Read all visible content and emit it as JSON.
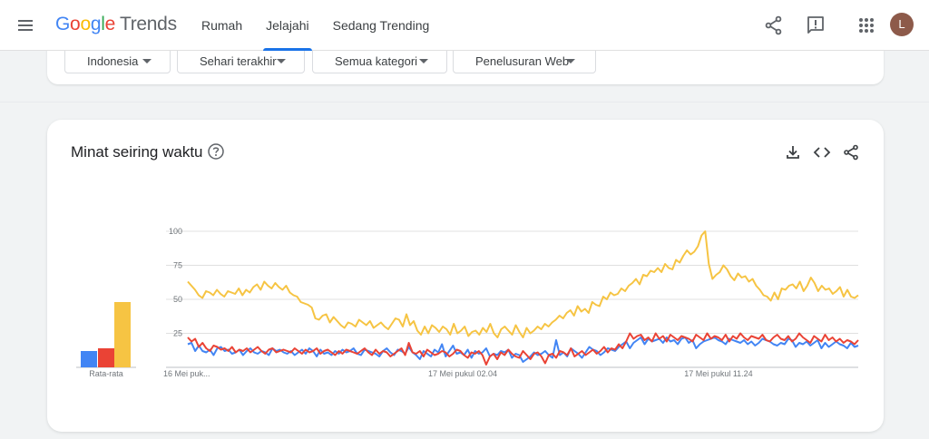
{
  "header": {
    "logo_letters": [
      "G",
      "o",
      "o",
      "g",
      "l",
      "e"
    ],
    "logo_suffix": "Trends",
    "nav": [
      {
        "label": "Rumah",
        "active": false
      },
      {
        "label": "Jelajahi",
        "active": true
      },
      {
        "label": "Sedang Trending",
        "active": false
      }
    ],
    "avatar_letter": "L",
    "icons": [
      "menu-icon",
      "share-icon",
      "feedback-icon",
      "apps-icon"
    ]
  },
  "filters": {
    "region": "Indonesia",
    "time": "Sehari terakhir",
    "category": "Semua kategori",
    "search_type": "Penelusuran Web"
  },
  "interest_card": {
    "title": "Minat seiring waktu",
    "icons": [
      "help-icon",
      "download-icon",
      "embed-icon",
      "share-icon"
    ]
  },
  "colors": {
    "blue": "#4285f4",
    "red": "#ea4335",
    "yellow": "#f6c443",
    "grid": "#e0e0e0",
    "axis_text": "#70757a"
  },
  "chart_data": {
    "type": "line",
    "ylim": [
      0,
      100
    ],
    "y_ticks": [
      "100",
      "75",
      "50",
      "25"
    ],
    "x_tick_labels": [
      "16 Mei puk...",
      "17 Mei pukul 02.04",
      "17 Mei pukul 11.24"
    ],
    "average_label": "Rata-rata",
    "averages": [
      12,
      14,
      48
    ],
    "series": [
      {
        "color": "#4285f4",
        "values": [
          17,
          18,
          12,
          16,
          12,
          11,
          13,
          9,
          14,
          15,
          12,
          13,
          10,
          11,
          13,
          9,
          12,
          14,
          11,
          10,
          12,
          11,
          9,
          14,
          12,
          13,
          11,
          10,
          12,
          9,
          11,
          13,
          10,
          14,
          12,
          8,
          13,
          10,
          11,
          9,
          12,
          10,
          13,
          11,
          12,
          14,
          10,
          9,
          13,
          12,
          11,
          10,
          8,
          12,
          14,
          11,
          9,
          13,
          12,
          10,
          15,
          11,
          9,
          6,
          12,
          10,
          8,
          13,
          11,
          17,
          8,
          12,
          16,
          10,
          11,
          9,
          13,
          7,
          12,
          10,
          11,
          14,
          8,
          10,
          9,
          12,
          11,
          13,
          7,
          10,
          9,
          4,
          6,
          8,
          11,
          9,
          10,
          12,
          9,
          7,
          20,
          9,
          11,
          8,
          14,
          12,
          10,
          7,
          11,
          15,
          13,
          12,
          9,
          11,
          14,
          13,
          12,
          15,
          17,
          19,
          14,
          18,
          20,
          22,
          17,
          21,
          19,
          20,
          21,
          18,
          22,
          19,
          20,
          17,
          21,
          22,
          18,
          20,
          14,
          17,
          19,
          20,
          21,
          22,
          20,
          19,
          17,
          21,
          20,
          19,
          18,
          20,
          17,
          19,
          16,
          18,
          21,
          20,
          19,
          17,
          16,
          18,
          17,
          21,
          20,
          15,
          18,
          17,
          19,
          16,
          18,
          20,
          14,
          18,
          15,
          17,
          19,
          17,
          16,
          14,
          18,
          15,
          16
        ]
      },
      {
        "color": "#ea4335",
        "values": [
          22,
          19,
          21,
          15,
          18,
          14,
          12,
          16,
          15,
          13,
          14,
          12,
          15,
          11,
          13,
          12,
          14,
          11,
          13,
          15,
          12,
          10,
          13,
          14,
          11,
          12,
          13,
          12,
          11,
          14,
          12,
          10,
          13,
          11,
          12,
          14,
          10,
          12,
          13,
          11,
          9,
          12,
          10,
          13,
          12,
          11,
          10,
          12,
          14,
          11,
          9,
          13,
          10,
          12,
          11,
          8,
          10,
          12,
          14,
          9,
          18,
          11,
          10,
          12,
          8,
          13,
          11,
          9,
          10,
          12,
          11,
          8,
          10,
          13,
          12,
          9,
          7,
          11,
          10,
          12,
          9,
          2,
          8,
          10,
          6,
          11,
          9,
          13,
          10,
          8,
          7,
          12,
          9,
          6,
          10,
          11,
          8,
          3,
          9,
          10,
          7,
          12,
          11,
          9,
          14,
          8,
          10,
          12,
          9,
          11,
          13,
          10,
          12,
          15,
          11,
          14,
          13,
          17,
          14,
          19,
          25,
          21,
          23,
          24,
          20,
          22,
          19,
          25,
          21,
          23,
          19,
          24,
          22,
          20,
          23,
          22,
          21,
          19,
          24,
          22,
          20,
          25,
          21,
          23,
          22,
          20,
          24,
          19,
          23,
          21,
          25,
          22,
          20,
          23,
          22,
          21,
          24,
          20,
          19,
          22,
          24,
          21,
          20,
          23,
          19,
          21,
          25,
          22,
          20,
          18,
          23,
          21,
          19,
          24,
          20,
          22,
          19,
          21,
          18,
          20,
          19,
          17,
          20
        ]
      },
      {
        "color": "#f6c443",
        "values": [
          63,
          60,
          57,
          53,
          51,
          56,
          55,
          53,
          57,
          54,
          52,
          56,
          55,
          54,
          58,
          53,
          57,
          55,
          59,
          61,
          57,
          63,
          60,
          58,
          62,
          59,
          57,
          60,
          55,
          53,
          52,
          48,
          47,
          46,
          44,
          36,
          35,
          38,
          39,
          33,
          37,
          34,
          31,
          29,
          33,
          32,
          30,
          35,
          33,
          31,
          34,
          29,
          31,
          33,
          30,
          28,
          32,
          36,
          35,
          30,
          39,
          31,
          34,
          27,
          24,
          30,
          25,
          31,
          29,
          26,
          30,
          28,
          24,
          32,
          25,
          27,
          30,
          23,
          26,
          27,
          24,
          29,
          26,
          32,
          25,
          22,
          28,
          30,
          27,
          24,
          31,
          26,
          22,
          29,
          25,
          27,
          30,
          28,
          32,
          30,
          33,
          35,
          38,
          36,
          40,
          42,
          38,
          45,
          41,
          43,
          40,
          48,
          46,
          45,
          52,
          50,
          55,
          53,
          54,
          58,
          56,
          60,
          62,
          65,
          61,
          68,
          67,
          71,
          70,
          73,
          70,
          76,
          73,
          72,
          79,
          77,
          82,
          86,
          83,
          85,
          89,
          97,
          100,
          76,
          65,
          68,
          70,
          75,
          72,
          67,
          64,
          69,
          66,
          67,
          63,
          65,
          60,
          57,
          53,
          52,
          49,
          55,
          50,
          58,
          57,
          60,
          61,
          58,
          63,
          56,
          60,
          66,
          62,
          56,
          60,
          57,
          58,
          54,
          56,
          59,
          52,
          57,
          52,
          51,
          53
        ]
      }
    ]
  }
}
